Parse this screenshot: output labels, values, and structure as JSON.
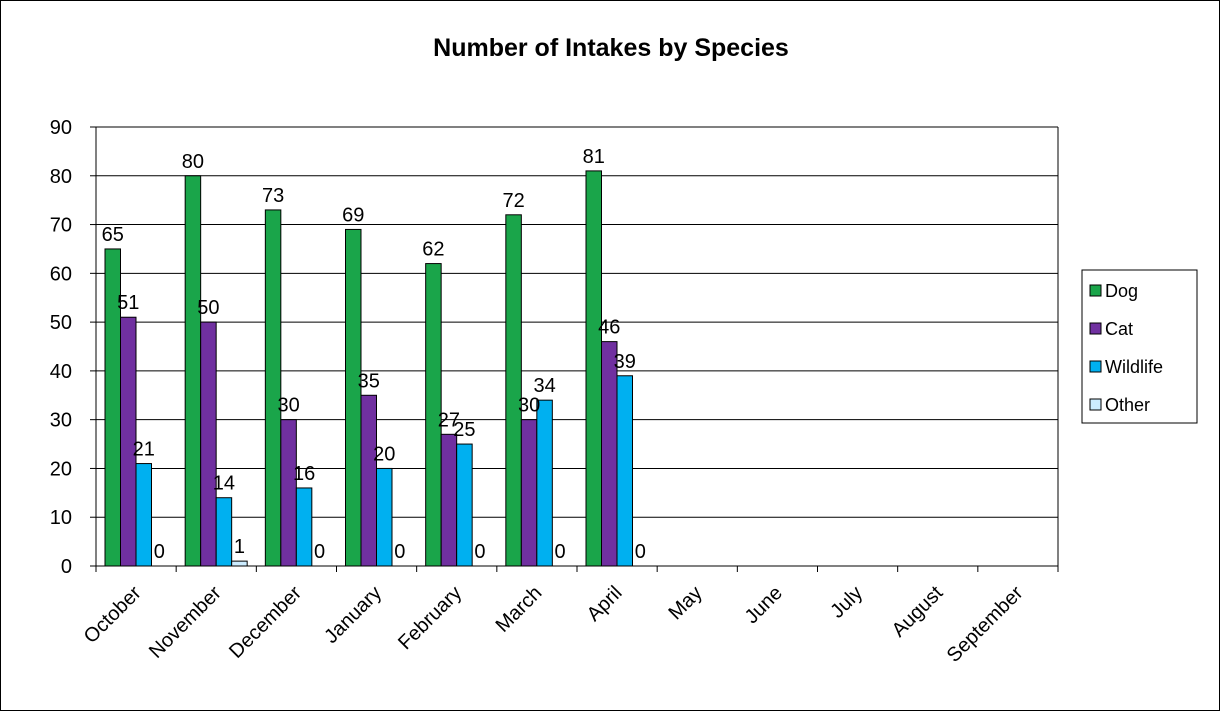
{
  "chart_data": {
    "type": "bar",
    "title": "Number of Intakes by Species",
    "categories": [
      "October",
      "November",
      "December",
      "January",
      "February",
      "March",
      "April",
      "May",
      "June",
      "July",
      "August",
      "September"
    ],
    "series": [
      {
        "name": "Dog",
        "color": "#1aa54a",
        "values": [
          65,
          80,
          73,
          69,
          62,
          72,
          81,
          null,
          null,
          null,
          null,
          null
        ]
      },
      {
        "name": "Cat",
        "color": "#7030a0",
        "values": [
          51,
          50,
          30,
          35,
          27,
          30,
          46,
          null,
          null,
          null,
          null,
          null
        ]
      },
      {
        "name": "Wildlife",
        "color": "#00b0f0",
        "values": [
          21,
          14,
          16,
          20,
          25,
          34,
          39,
          null,
          null,
          null,
          null,
          null
        ]
      },
      {
        "name": "Other",
        "color": "#ccecff",
        "values": [
          0,
          1,
          0,
          0,
          0,
          0,
          0,
          null,
          null,
          null,
          null,
          null
        ]
      }
    ],
    "ylim": [
      0,
      90
    ],
    "ytick_step": 10,
    "grid": true,
    "legend": "right",
    "data_labels": true
  }
}
